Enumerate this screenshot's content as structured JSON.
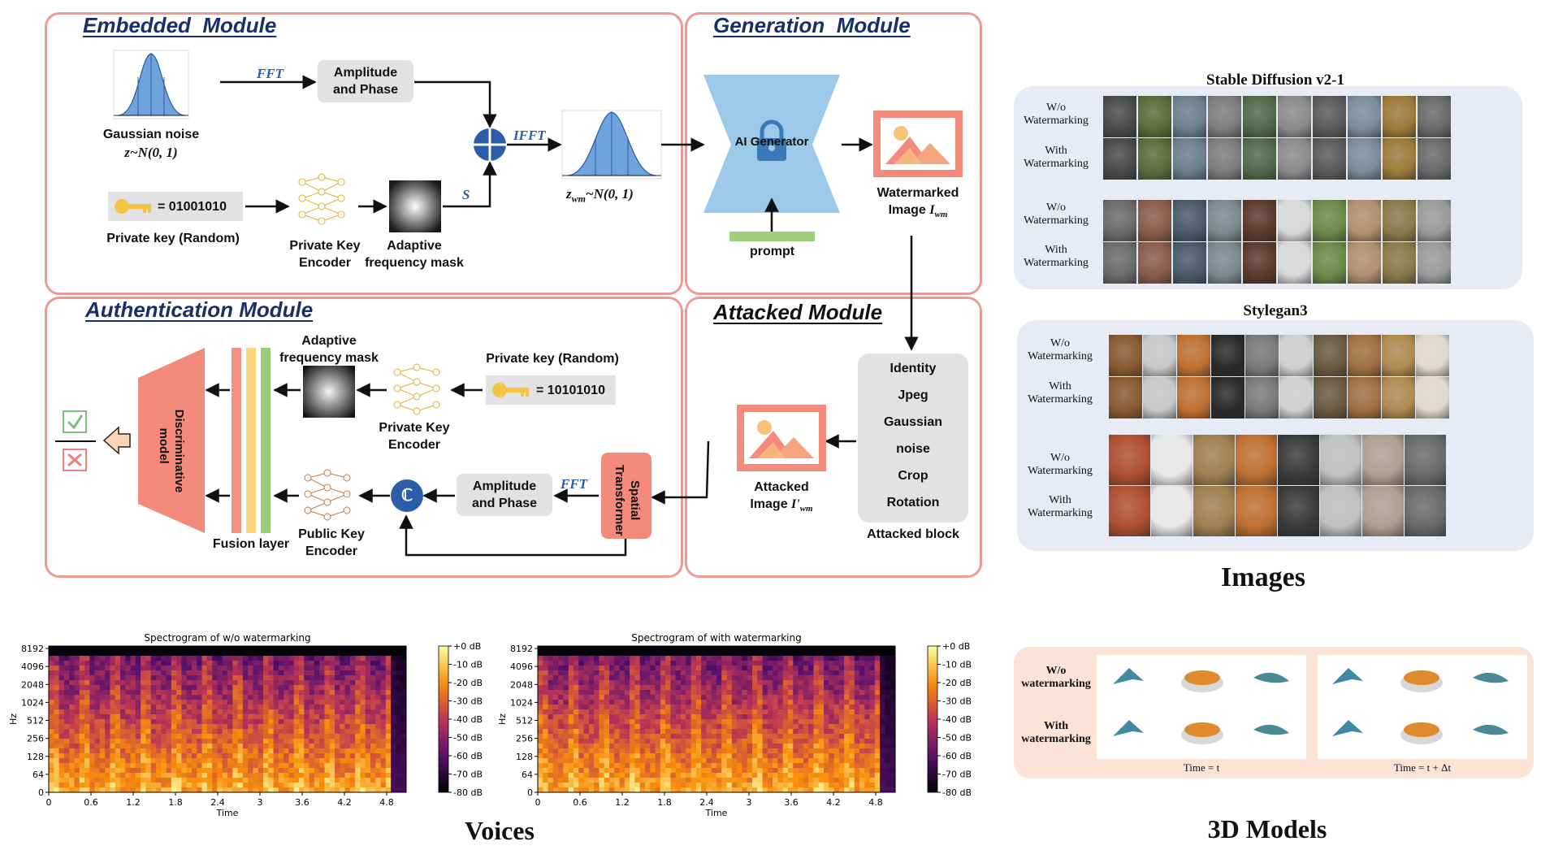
{
  "diagram": {
    "embedded": {
      "title": "Embedded  Module",
      "fft": "FFT",
      "amp_phase": [
        "Amplitude",
        "and Phase"
      ],
      "gauss_label": "Gaussian noise",
      "gauss_formula": "z~N(0, 1)",
      "ifft": "IFFT",
      "zwm": "z",
      "zwm_sub": "wm",
      "zwm_rest": "~N(0, 1)",
      "key_bits": "= 01001010",
      "private_key": "Private key (Random)",
      "pke": [
        "Private Key",
        "Encoder"
      ],
      "afm": [
        "Adaptive",
        "frequency mask"
      ],
      "s": "S"
    },
    "generation": {
      "title": "Generation  Module",
      "ai_generator": "AI Generator",
      "prompt": "prompt",
      "watermarked": "Watermarked",
      "image_label": "Image ",
      "I": "I",
      "I_sub": "wm"
    },
    "authentication": {
      "title": "Authentication Module",
      "afm": [
        "Adaptive",
        "frequency mask"
      ],
      "private_key": "Private key (Random)",
      "key_bits": "= 10101010",
      "pke": [
        "Private Key",
        "Encoder"
      ],
      "disc": [
        "Discriminative",
        "model"
      ],
      "fusion": "Fusion layer",
      "pubke": [
        "Public Key",
        "Encoder"
      ],
      "amp_phase": [
        "Amplitude",
        "and Phase"
      ],
      "fft": "FFT",
      "st": [
        "Spatial",
        "Transformer"
      ],
      "c": "ℂ"
    },
    "attacked": {
      "title": "Attacked Module",
      "attacks": [
        "Identity",
        "Jpeg",
        "Gaussian",
        "noise",
        "Crop",
        "Rotation"
      ],
      "block": "Attacked block",
      "attacked": "Attacked",
      "image_label": "Image ",
      "I": "I'",
      "I_sub": "wm"
    }
  },
  "images": {
    "sd_title": "Stable Diffusion v2-1",
    "stylegan_title": "Stylegan3",
    "wo": [
      "W/o",
      "Watermarking"
    ],
    "with": [
      "With",
      "Watermarking"
    ],
    "caption": "Images"
  },
  "voices": {
    "caption": "Voices",
    "spec1_title": "Spectrogram of w/o watermarking",
    "spec2_title": "Spectrogram of with watermarking",
    "ylabel": "Hz",
    "xlabel": "Time",
    "yticks": [
      "8192",
      "4096",
      "2048",
      "1024",
      "512",
      "256",
      "128",
      "64",
      "0"
    ],
    "xticks": [
      "0",
      "0.6",
      "1.2",
      "1.8",
      "2.4",
      "3",
      "3.6",
      "4.2",
      "4.8"
    ],
    "cbar_ticks": [
      "+0 dB",
      "-10 dB",
      "-20 dB",
      "-30 dB",
      "-40 dB",
      "-50 dB",
      "-60 dB",
      "-70 dB",
      "-80 dB"
    ]
  },
  "models3d": {
    "caption": "3D Models",
    "wo": [
      "W/o",
      "watermarking"
    ],
    "with": [
      "With",
      "watermarking"
    ],
    "time1": "Time = t",
    "time2": "Time = t + Δt"
  },
  "colors": {
    "module_border": "#ee9a92",
    "title_blue": "#17306a",
    "gray_box": "#e2e2e2",
    "disc_red": "#f48a7c",
    "generator_blue": "#9cc9ea",
    "prompt_green": "#9fcf7a",
    "fusion_red": "#f59080",
    "fusion_yellow": "#f7d67c",
    "fusion_green": "#98cc7c",
    "images_panel": "#e6ebf6",
    "models_panel": "#fbe3d6",
    "adder_blue": "#2b5da8"
  }
}
